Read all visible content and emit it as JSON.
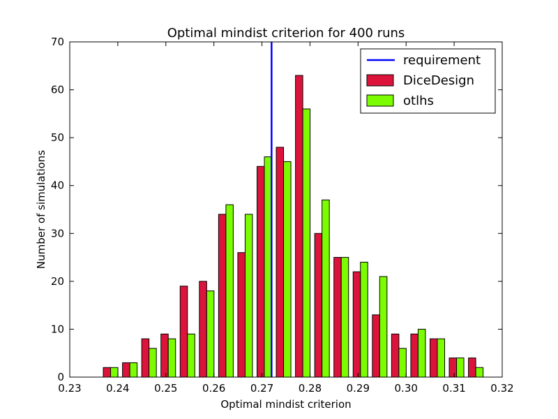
{
  "chart_data": {
    "type": "bar",
    "title": "Optimal mindist criterion for 400 runs",
    "xlabel": "Optimal mindist criterion",
    "ylabel": "Number of simulations",
    "xlim": [
      0.23,
      0.32
    ],
    "ylim": [
      0,
      70
    ],
    "xticks": [
      "0.23",
      "0.24",
      "0.25",
      "0.26",
      "0.27",
      "0.28",
      "0.29",
      "0.30",
      "0.31",
      "0.32"
    ],
    "yticks": [
      "0",
      "10",
      "20",
      "30",
      "40",
      "50",
      "60",
      "70"
    ],
    "bin_centers": [
      0.2385,
      0.2425,
      0.2465,
      0.2505,
      0.2545,
      0.2585,
      0.2625,
      0.2665,
      0.2705,
      0.2745,
      0.2785,
      0.2825,
      0.2865,
      0.2905,
      0.2945,
      0.2985,
      0.3025,
      0.3065,
      0.3105,
      0.3145
    ],
    "series": [
      {
        "name": "DiceDesign",
        "color": "#dc143c",
        "values": [
          2,
          3,
          8,
          9,
          19,
          20,
          34,
          26,
          44,
          48,
          63,
          30,
          25,
          22,
          13,
          9,
          9,
          8,
          4,
          4
        ]
      },
      {
        "name": "otlhs",
        "color": "#7cfc00",
        "values": [
          2,
          3,
          6,
          8,
          9,
          18,
          36,
          34,
          46,
          45,
          56,
          37,
          25,
          24,
          21,
          6,
          10,
          8,
          4,
          2
        ]
      }
    ],
    "reference_line": {
      "name": "requirement",
      "x": 0.272,
      "color": "#0000ff"
    },
    "legend_position": "top-right",
    "grid": false
  }
}
